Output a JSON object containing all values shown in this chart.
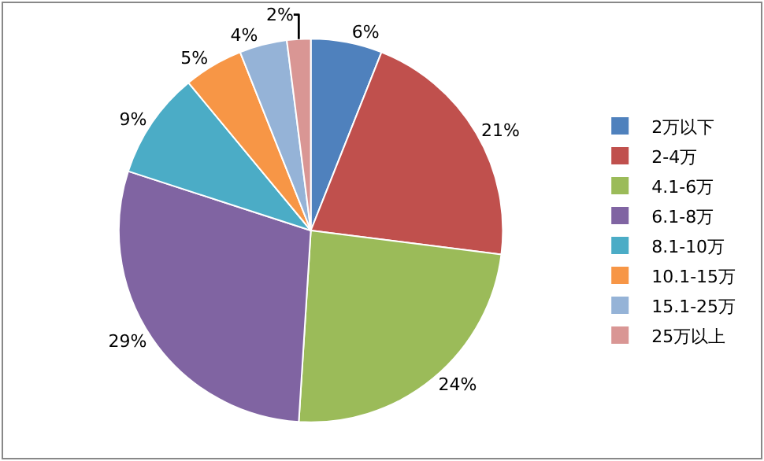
{
  "chart_data": {
    "type": "pie",
    "categories": [
      "2万以下",
      "2-4万",
      "4.1-6万",
      "6.1-8万",
      "8.1-10万",
      "10.1-15万",
      "15.1-25万",
      "25万以上"
    ],
    "values": [
      6,
      21,
      24,
      29,
      9,
      5,
      4,
      2
    ],
    "colors": [
      "#4f81bd",
      "#c0504d",
      "#9bbb59",
      "#8064a2",
      "#4bacc6",
      "#f79646",
      "#95b3d7",
      "#d99694"
    ],
    "value_labels": [
      "6%",
      "21%",
      "24%",
      "29%",
      "9%",
      "5%",
      "4%",
      "2%"
    ],
    "legend": "right"
  }
}
